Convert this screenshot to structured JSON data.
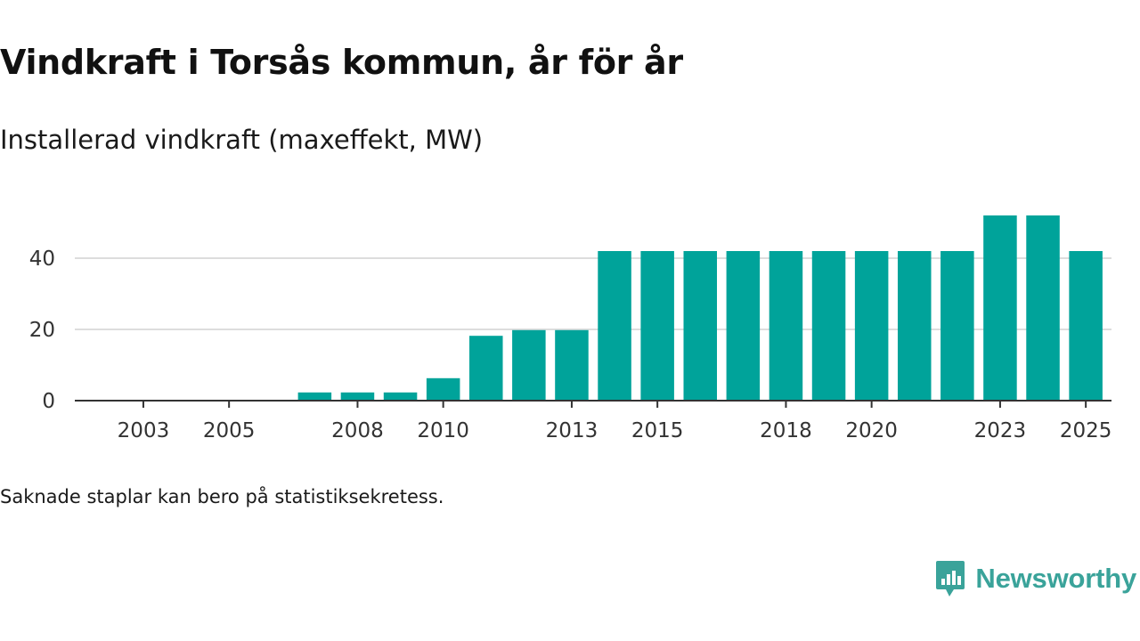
{
  "title": "Vindkraft i Torsås kommun, år för år",
  "subtitle": "Installerad vindkraft (maxeffekt, MW)",
  "footnote": "Saknade staplar kan bero på statistiksekretess.",
  "brand": {
    "name": "Newsworthy"
  },
  "colors": {
    "bar": "#00a39a",
    "grid": "#dddddd",
    "axis": "#333333",
    "brand": "#3aa39a"
  },
  "chart_data": {
    "type": "bar",
    "title": "Vindkraft i Torsås kommun, år för år",
    "ylabel": "Installerad vindkraft (maxeffekt, MW)",
    "xlabel": "",
    "categories": [
      "2002",
      "2003",
      "2004",
      "2005",
      "2006",
      "2007",
      "2008",
      "2009",
      "2010",
      "2011",
      "2012",
      "2013",
      "2014",
      "2015",
      "2016",
      "2017",
      "2018",
      "2019",
      "2020",
      "2021",
      "2022",
      "2023",
      "2024",
      "2025"
    ],
    "values": [
      0,
      0,
      0,
      0,
      0,
      2.3,
      2.3,
      2.3,
      6.3,
      18.2,
      19.8,
      19.8,
      42,
      42,
      42,
      42,
      42,
      42,
      42,
      42,
      42,
      52,
      52,
      42
    ],
    "x_tick_labels": [
      "2003",
      "2005",
      "2008",
      "2010",
      "2013",
      "2015",
      "2018",
      "2020",
      "2023",
      "2025"
    ],
    "y_ticks": [
      0,
      20,
      40
    ],
    "ylim": [
      0,
      55
    ],
    "grid": true,
    "legend": "none"
  }
}
